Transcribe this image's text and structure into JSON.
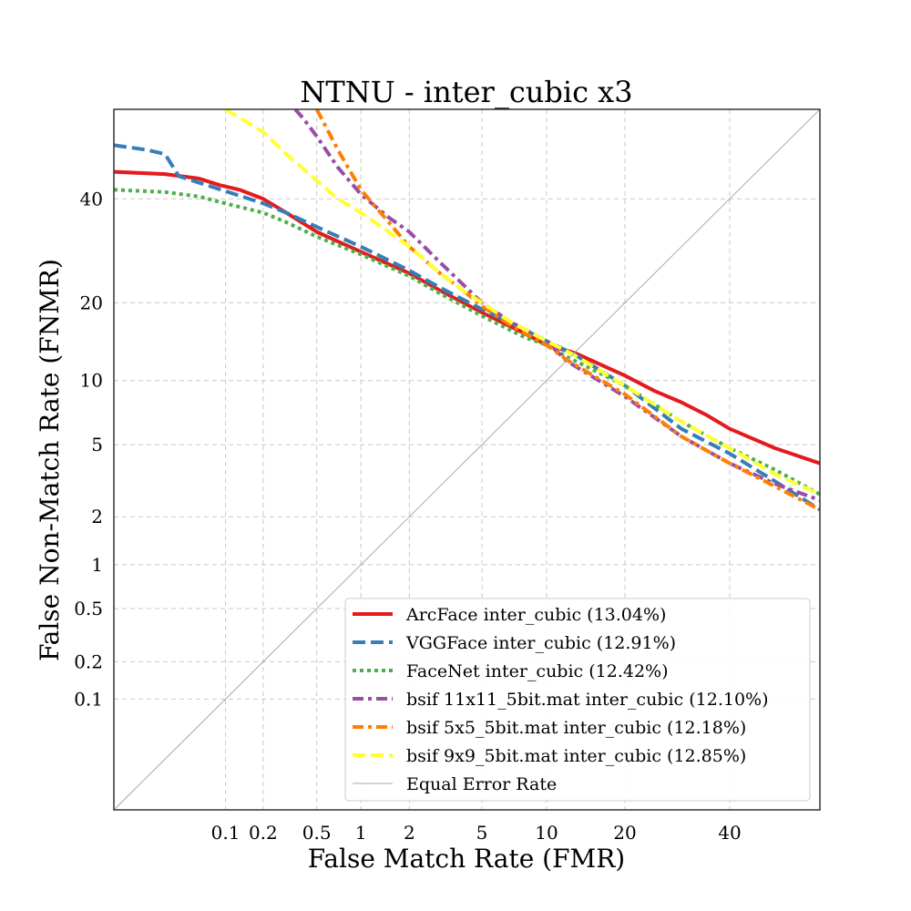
{
  "chart_data": {
    "type": "line",
    "title": "NTNU - inter_cubic x3",
    "xlabel": "False Match Rate (FMR)",
    "ylabel": "False Non-Match Rate (FNMR)",
    "x_scale": "probit",
    "y_scale": "probit",
    "xlim": [
      0.01,
      60
    ],
    "ylim": [
      0.01,
      60
    ],
    "x_ticks": [
      0.1,
      0.2,
      0.5,
      1,
      2,
      5,
      10,
      20,
      40
    ],
    "x_tick_labels": [
      "0.1",
      "0.2",
      "0.5",
      "1",
      "2",
      "5",
      "10",
      "20",
      "40"
    ],
    "y_ticks": [
      0.1,
      0.2,
      0.5,
      1,
      2,
      5,
      10,
      20,
      40
    ],
    "y_tick_labels": [
      "0.1",
      "0.2",
      "0.5",
      "1",
      "2",
      "5",
      "10",
      "20",
      "40"
    ],
    "grid": true,
    "legend_position": "bottom-right",
    "series": [
      {
        "name": "ArcFace inter_cubic (13.04%)",
        "color": "#e41a1c",
        "style": "solid",
        "points": [
          [
            0.01,
            46
          ],
          [
            0.03,
            45.5
          ],
          [
            0.06,
            44.5
          ],
          [
            0.09,
            43
          ],
          [
            0.13,
            42
          ],
          [
            0.2,
            40
          ],
          [
            0.3,
            37
          ],
          [
            0.5,
            33
          ],
          [
            1,
            29
          ],
          [
            2,
            25
          ],
          [
            3,
            22
          ],
          [
            5,
            18.5
          ],
          [
            8,
            15.5
          ],
          [
            10,
            14
          ],
          [
            13.04,
            13.04
          ],
          [
            20,
            10.5
          ],
          [
            25,
            9
          ],
          [
            30,
            8
          ],
          [
            35,
            7
          ],
          [
            40,
            6
          ],
          [
            50,
            4.8
          ],
          [
            60,
            4
          ]
        ]
      },
      {
        "name": "VGGFace inter_cubic (12.91%)",
        "color": "#377eb8",
        "style": "dashed",
        "points": [
          [
            0.01,
            52
          ],
          [
            0.02,
            51
          ],
          [
            0.03,
            50
          ],
          [
            0.04,
            45
          ],
          [
            0.07,
            43
          ],
          [
            0.12,
            41
          ],
          [
            0.2,
            39
          ],
          [
            0.3,
            37
          ],
          [
            0.5,
            34
          ],
          [
            1,
            30
          ],
          [
            2,
            25.5
          ],
          [
            3,
            22.5
          ],
          [
            5,
            19
          ],
          [
            8,
            16
          ],
          [
            10,
            14.5
          ],
          [
            12.91,
            12.91
          ],
          [
            20,
            9.5
          ],
          [
            30,
            6
          ],
          [
            40,
            4.5
          ],
          [
            50,
            3.2
          ],
          [
            60,
            2.2
          ]
        ]
      },
      {
        "name": "FaceNet inter_cubic (12.42%)",
        "color": "#4daf4a",
        "style": "dotted",
        "points": [
          [
            0.01,
            42
          ],
          [
            0.03,
            41.5
          ],
          [
            0.06,
            40.5
          ],
          [
            0.1,
            39
          ],
          [
            0.2,
            37
          ],
          [
            0.3,
            35
          ],
          [
            0.5,
            32
          ],
          [
            1,
            28.5
          ],
          [
            2,
            24.5
          ],
          [
            3,
            21.5
          ],
          [
            5,
            18
          ],
          [
            8,
            15
          ],
          [
            10,
            14
          ],
          [
            12.42,
            12.42
          ],
          [
            20,
            9.5
          ],
          [
            30,
            6.5
          ],
          [
            40,
            4.8
          ],
          [
            50,
            3.7
          ],
          [
            60,
            2.7
          ]
        ]
      },
      {
        "name": "bsif 11x11_5bit.mat inter_cubic (12.10%)",
        "color": "#984ea3",
        "style": "dashdot",
        "points": [
          [
            0.35,
            60
          ],
          [
            0.4,
            58
          ],
          [
            0.5,
            54
          ],
          [
            0.7,
            47
          ],
          [
            1,
            41
          ],
          [
            1.5,
            36
          ],
          [
            2,
            33
          ],
          [
            3,
            27
          ],
          [
            4,
            23
          ],
          [
            5,
            20
          ],
          [
            7,
            17
          ],
          [
            10,
            14.5
          ],
          [
            12.1,
            12.1
          ],
          [
            20,
            8.5
          ],
          [
            30,
            5.5
          ],
          [
            40,
            4
          ],
          [
            50,
            3.1
          ],
          [
            60,
            2.5
          ]
        ]
      },
      {
        "name": "bsif 5x5_5bit.mat inter_cubic (12.18%)",
        "color": "#ff7f00",
        "style": "dashdot",
        "points": [
          [
            0.5,
            60
          ],
          [
            0.7,
            51
          ],
          [
            1,
            42
          ],
          [
            1.5,
            35
          ],
          [
            2,
            30
          ],
          [
            3,
            25
          ],
          [
            4,
            22
          ],
          [
            5,
            19.5
          ],
          [
            7,
            16.5
          ],
          [
            10,
            14
          ],
          [
            12.18,
            12.18
          ],
          [
            20,
            8.7
          ],
          [
            30,
            5.5
          ],
          [
            40,
            4
          ],
          [
            50,
            3
          ],
          [
            60,
            2.2
          ]
        ]
      },
      {
        "name": "bsif 9x9_5bit.mat inter_cubic (12.85%)",
        "color": "#ffff33",
        "style": "dashed",
        "points": [
          [
            0.1,
            60
          ],
          [
            0.2,
            55
          ],
          [
            0.3,
            50
          ],
          [
            0.5,
            44
          ],
          [
            0.7,
            40
          ],
          [
            1,
            37
          ],
          [
            1.5,
            33
          ],
          [
            2,
            30
          ],
          [
            3,
            25
          ],
          [
            4,
            22
          ],
          [
            5,
            20
          ],
          [
            7,
            17
          ],
          [
            10,
            14.5
          ],
          [
            12.85,
            12.85
          ],
          [
            20,
            9.5
          ],
          [
            30,
            6.5
          ],
          [
            40,
            4.8
          ],
          [
            50,
            3.5
          ],
          [
            60,
            2.7
          ]
        ]
      },
      {
        "name": "Equal Error Rate",
        "color": "#aaaaaa",
        "style": "thin",
        "points": [
          [
            0.01,
            0.01
          ],
          [
            60,
            60
          ]
        ]
      }
    ]
  }
}
